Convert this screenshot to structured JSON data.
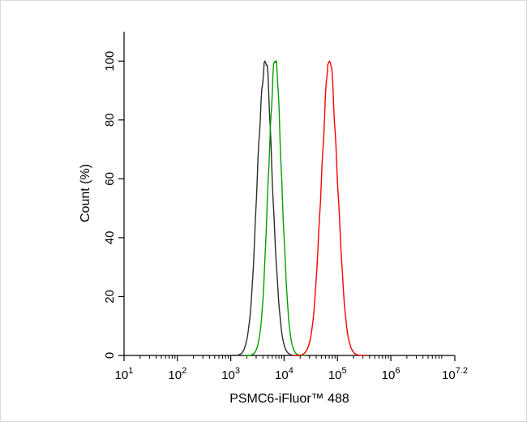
{
  "chart_data": {
    "type": "line",
    "title": "",
    "xlabel": "PSMC6-iFluor™ 488",
    "ylabel": "Count (%)",
    "x_scale": "log10",
    "x_log_range": [
      1,
      7.2
    ],
    "x_exponent_ticks": [
      1,
      2,
      3,
      4,
      5,
      6,
      7.2
    ],
    "x_tick_labels": [
      "10^1",
      "10^2",
      "10^3",
      "10^4",
      "10^5",
      "10^6",
      "10^7.2"
    ],
    "y_ticks": [
      0,
      20,
      40,
      60,
      80,
      100
    ],
    "ylim": [
      0,
      110
    ],
    "grid": false,
    "legend": "none",
    "series": [
      {
        "name": "black-curve",
        "color": "#2d2d2d",
        "peak_log10": 3.64,
        "sigma_log10": 0.14,
        "peak_count_pct": 100
      },
      {
        "name": "green-curve",
        "color": "#00a000",
        "peak_log10": 3.83,
        "sigma_log10": 0.125,
        "peak_count_pct": 100
      },
      {
        "name": "red-curve",
        "color": "#ff0000",
        "peak_log10": 4.85,
        "sigma_log10": 0.15,
        "peak_count_pct": 100
      }
    ]
  }
}
